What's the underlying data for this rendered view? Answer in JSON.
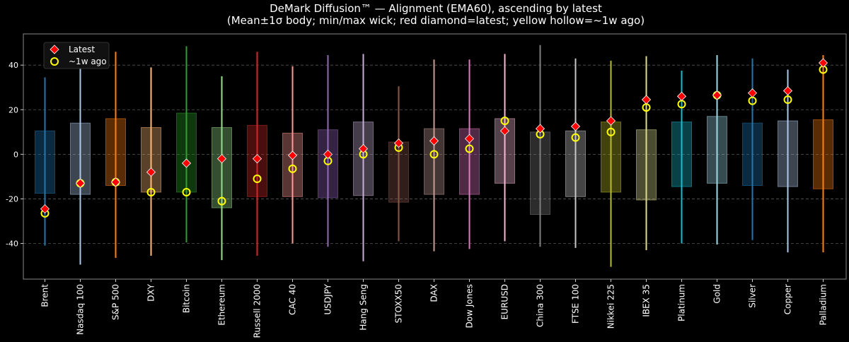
{
  "chart_data": {
    "type": "box",
    "title": "DeMark Diffusion™ — Alignment (EMA60), ascending by latest",
    "subtitle": "(Mean±1σ body; min/max wick; red diamond=latest; yellow hollow=~1w ago)",
    "xlabel": "",
    "ylabel": "",
    "ylim": [
      -56,
      54
    ],
    "yticks": [
      -40,
      -20,
      0,
      20,
      40
    ],
    "grid": true,
    "legend_placement": "top-left",
    "legend": [
      {
        "label": "Latest",
        "marker": "diamond",
        "color": "#ff0000"
      },
      {
        "label": "~1w ago",
        "marker": "hollow-circle",
        "color": "#ffff00"
      }
    ],
    "categories": [
      "Brent",
      "Nasdaq 100",
      "S&P 500",
      "DXY",
      "Bitcoin",
      "Ethereum",
      "Russell 2000",
      "CAC 40",
      "USDJPY",
      "Hang Seng",
      "STOXX50",
      "DAX",
      "Dow Jones",
      "EURUSD",
      "China 300",
      "FTSE 100",
      "Nikkei 225",
      "IBEX 35",
      "Platinum",
      "Gold",
      "Silver",
      "Copper",
      "Palladium"
    ],
    "box_high": [
      10.5,
      14,
      16,
      12,
      18.5,
      12,
      13,
      9.5,
      11,
      14.5,
      5.5,
      11.5,
      11.5,
      16,
      10,
      10.5,
      14.5,
      11,
      14.5,
      17,
      14,
      15,
      15.5
    ],
    "box_low": [
      -17.5,
      -18,
      -14,
      -17,
      -17,
      -24,
      -19,
      -19,
      -19.5,
      -18.5,
      -21.5,
      -18,
      -18,
      -13,
      -27,
      -19,
      -17,
      -20.5,
      -14.5,
      -13,
      -14,
      -14.5,
      -15.5
    ],
    "wick_max": [
      34.5,
      44,
      46,
      39,
      48.5,
      35,
      46,
      39.5,
      44.5,
      45,
      30.5,
      42.5,
      42.5,
      45,
      49,
      43,
      42,
      44,
      37.5,
      44.5,
      43,
      38,
      44.5
    ],
    "wick_min": [
      -41,
      -49.5,
      -46.5,
      -45.5,
      -39.5,
      -47.5,
      -45.5,
      -40,
      -41.5,
      -48,
      -39,
      -43.5,
      -42.5,
      -39,
      -41.5,
      -42,
      -50.5,
      -43,
      -40,
      -40.5,
      -38.5,
      -44,
      -44
    ],
    "latest": [
      -24.5,
      -13,
      -12.5,
      -8,
      -4,
      -2,
      -2,
      -0.5,
      0,
      2.5,
      5,
      6,
      7,
      10.5,
      11.5,
      12.5,
      15,
      24.5,
      26,
      26.5,
      27.5,
      28.5,
      41
    ],
    "week_ago": [
      -26.5,
      -13,
      -12.5,
      -17,
      -17,
      -21,
      -11,
      -6.5,
      -3,
      0,
      3,
      0,
      2.5,
      15,
      9,
      7.5,
      10,
      21,
      22.5,
      26.5,
      24,
      24.5,
      38
    ],
    "colors": [
      "#1f77b4",
      "#aec7e8",
      "#ff7f0e",
      "#ffbb78",
      "#2ca02c",
      "#98df8a",
      "#d62728",
      "#ff9896",
      "#9467bd",
      "#c5b0d5",
      "#8c564b",
      "#c49c94",
      "#e377c2",
      "#f7b6d2",
      "#7f7f7f",
      "#c7c7c7",
      "#bcbd22",
      "#dbdb8d",
      "#17becf",
      "#9edae5",
      "#1f77b4",
      "#aec7e8",
      "#ff7f0e"
    ]
  }
}
